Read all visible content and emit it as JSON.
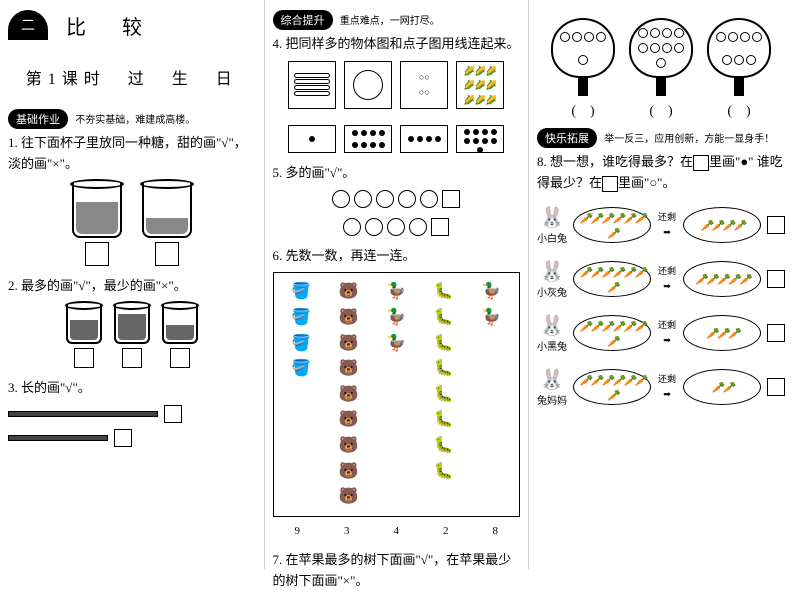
{
  "chapter": {
    "number": "二",
    "title": "比　较"
  },
  "lesson": {
    "label": "第1课时　过　生　日"
  },
  "sections": {
    "basic": {
      "badge": "基础作业",
      "sub": "不夯实基础，难建成高楼。"
    },
    "comprehensive": {
      "badge": "综合提升",
      "sub": "重点难点，一网打尽。"
    },
    "extend": {
      "badge": "快乐拓展",
      "sub": "举一反三，应用创新，方能一显身手！"
    }
  },
  "q1": {
    "text": "1. 往下面杯子里放同一种糖，甜的画\"√\"，淡的画\"×\"。",
    "fills": [
      60,
      30
    ]
  },
  "q2": {
    "text": "2. 最多的画\"√\"，最少的画\"×\"。",
    "fills": [
      55,
      70,
      40
    ]
  },
  "q3": {
    "text": "3. 长的画\"√\"。",
    "bars": [
      150,
      100
    ]
  },
  "q4": {
    "text": "4. 把同样多的物体图和点子图用线连起来。",
    "dots": [
      1,
      8,
      4,
      9
    ]
  },
  "q5": {
    "text": "5. 多的画\"√\"。",
    "peaches": 5,
    "apples": 4
  },
  "q6": {
    "text": "6. 先数一数，再连一连。",
    "nums": [
      "9",
      "3",
      "4",
      "2",
      "8"
    ]
  },
  "q7": {
    "text": "7. 在苹果最多的树下面画\"√\"，在苹果最少的树下面画\"×\"。",
    "trees": [
      5,
      9,
      7
    ]
  },
  "q8": {
    "text1": "8. 想一想，谁吃得最多？在",
    "text2": "里画\"●\"",
    "text3": "谁吃得最少？在",
    "text4": "里画\"○\"。",
    "arrow_label": "还剩",
    "rabbits": [
      {
        "name": "小白兔",
        "before": 7,
        "after": 4
      },
      {
        "name": "小灰兔",
        "before": 7,
        "after": 5
      },
      {
        "name": "小黑兔",
        "before": 7,
        "after": 3
      },
      {
        "name": "兔妈妈",
        "before": 7,
        "after": 2
      }
    ]
  }
}
